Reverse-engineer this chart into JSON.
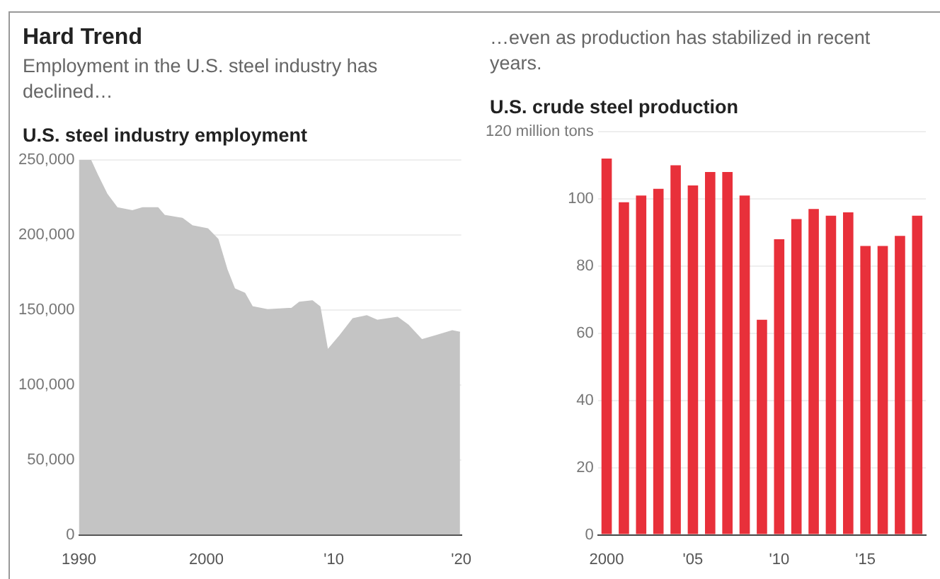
{
  "chart_data": [
    {
      "type": "area",
      "annotations": [
        "Hard Trend"
      ],
      "subtitle": "Employment in the U.S. steel industry has declined…",
      "title": "U.S. steel industry employment",
      "color": "#c4c4c4",
      "grid": "y",
      "x": [
        1990,
        1990.9,
        1991.5,
        1992.2,
        1993,
        1994.2,
        1995,
        1996.2,
        1996.7,
        1998.1,
        1998.9,
        2000.1,
        2000.9,
        2001.6,
        2002.2,
        2003,
        2003.6,
        2004.8,
        2006.7,
        2007.3,
        2008.3,
        2008.9,
        2009.5,
        2010.5,
        2011.5,
        2012.6,
        2013.4,
        2015,
        2015.8,
        2016.9,
        2018.1,
        2019.3,
        2019.9
      ],
      "values": [
        250000,
        250000,
        239000,
        227000,
        218000,
        216000,
        218000,
        218000,
        213000,
        211000,
        206000,
        204000,
        197000,
        177000,
        164000,
        161000,
        152000,
        150000,
        151000,
        155000,
        156000,
        152000,
        123000,
        133000,
        144000,
        146000,
        143000,
        145000,
        140000,
        130000,
        133000,
        136000,
        135000
      ],
      "xlim": [
        1990,
        2020
      ],
      "xticks": [
        1990,
        2000,
        {
          "value": 2010,
          "label": "'10"
        },
        {
          "value": 2020,
          "label": "'20"
        }
      ],
      "ylim": [
        0,
        250000
      ],
      "yticks": [
        0,
        {
          "value": 50000,
          "label": "50,000"
        },
        {
          "value": 100000,
          "label": "100,000"
        },
        {
          "value": 150000,
          "label": "150,000"
        },
        {
          "value": 200000,
          "label": "200,000"
        },
        {
          "value": 250000,
          "label": "250,000"
        }
      ]
    },
    {
      "type": "bar",
      "subtitle": "…even as production has stabilized in recent years.",
      "title": "U.S. crude steel production",
      "color": "#e8303a",
      "grid": "y",
      "categories": [
        "2000",
        null,
        null,
        null,
        null,
        "'05",
        null,
        null,
        null,
        null,
        "'10",
        null,
        null,
        null,
        null,
        "'15",
        null,
        null,
        null
      ],
      "values": [
        112,
        99,
        101,
        103,
        110,
        104,
        108,
        108,
        101,
        64,
        88,
        94,
        97,
        95,
        96,
        86,
        86,
        89,
        95
      ],
      "ylim": [
        0,
        120
      ],
      "yticks": [
        0,
        20,
        40,
        60,
        80,
        100,
        {
          "value": 120,
          "label": "120 million tons"
        }
      ]
    }
  ]
}
